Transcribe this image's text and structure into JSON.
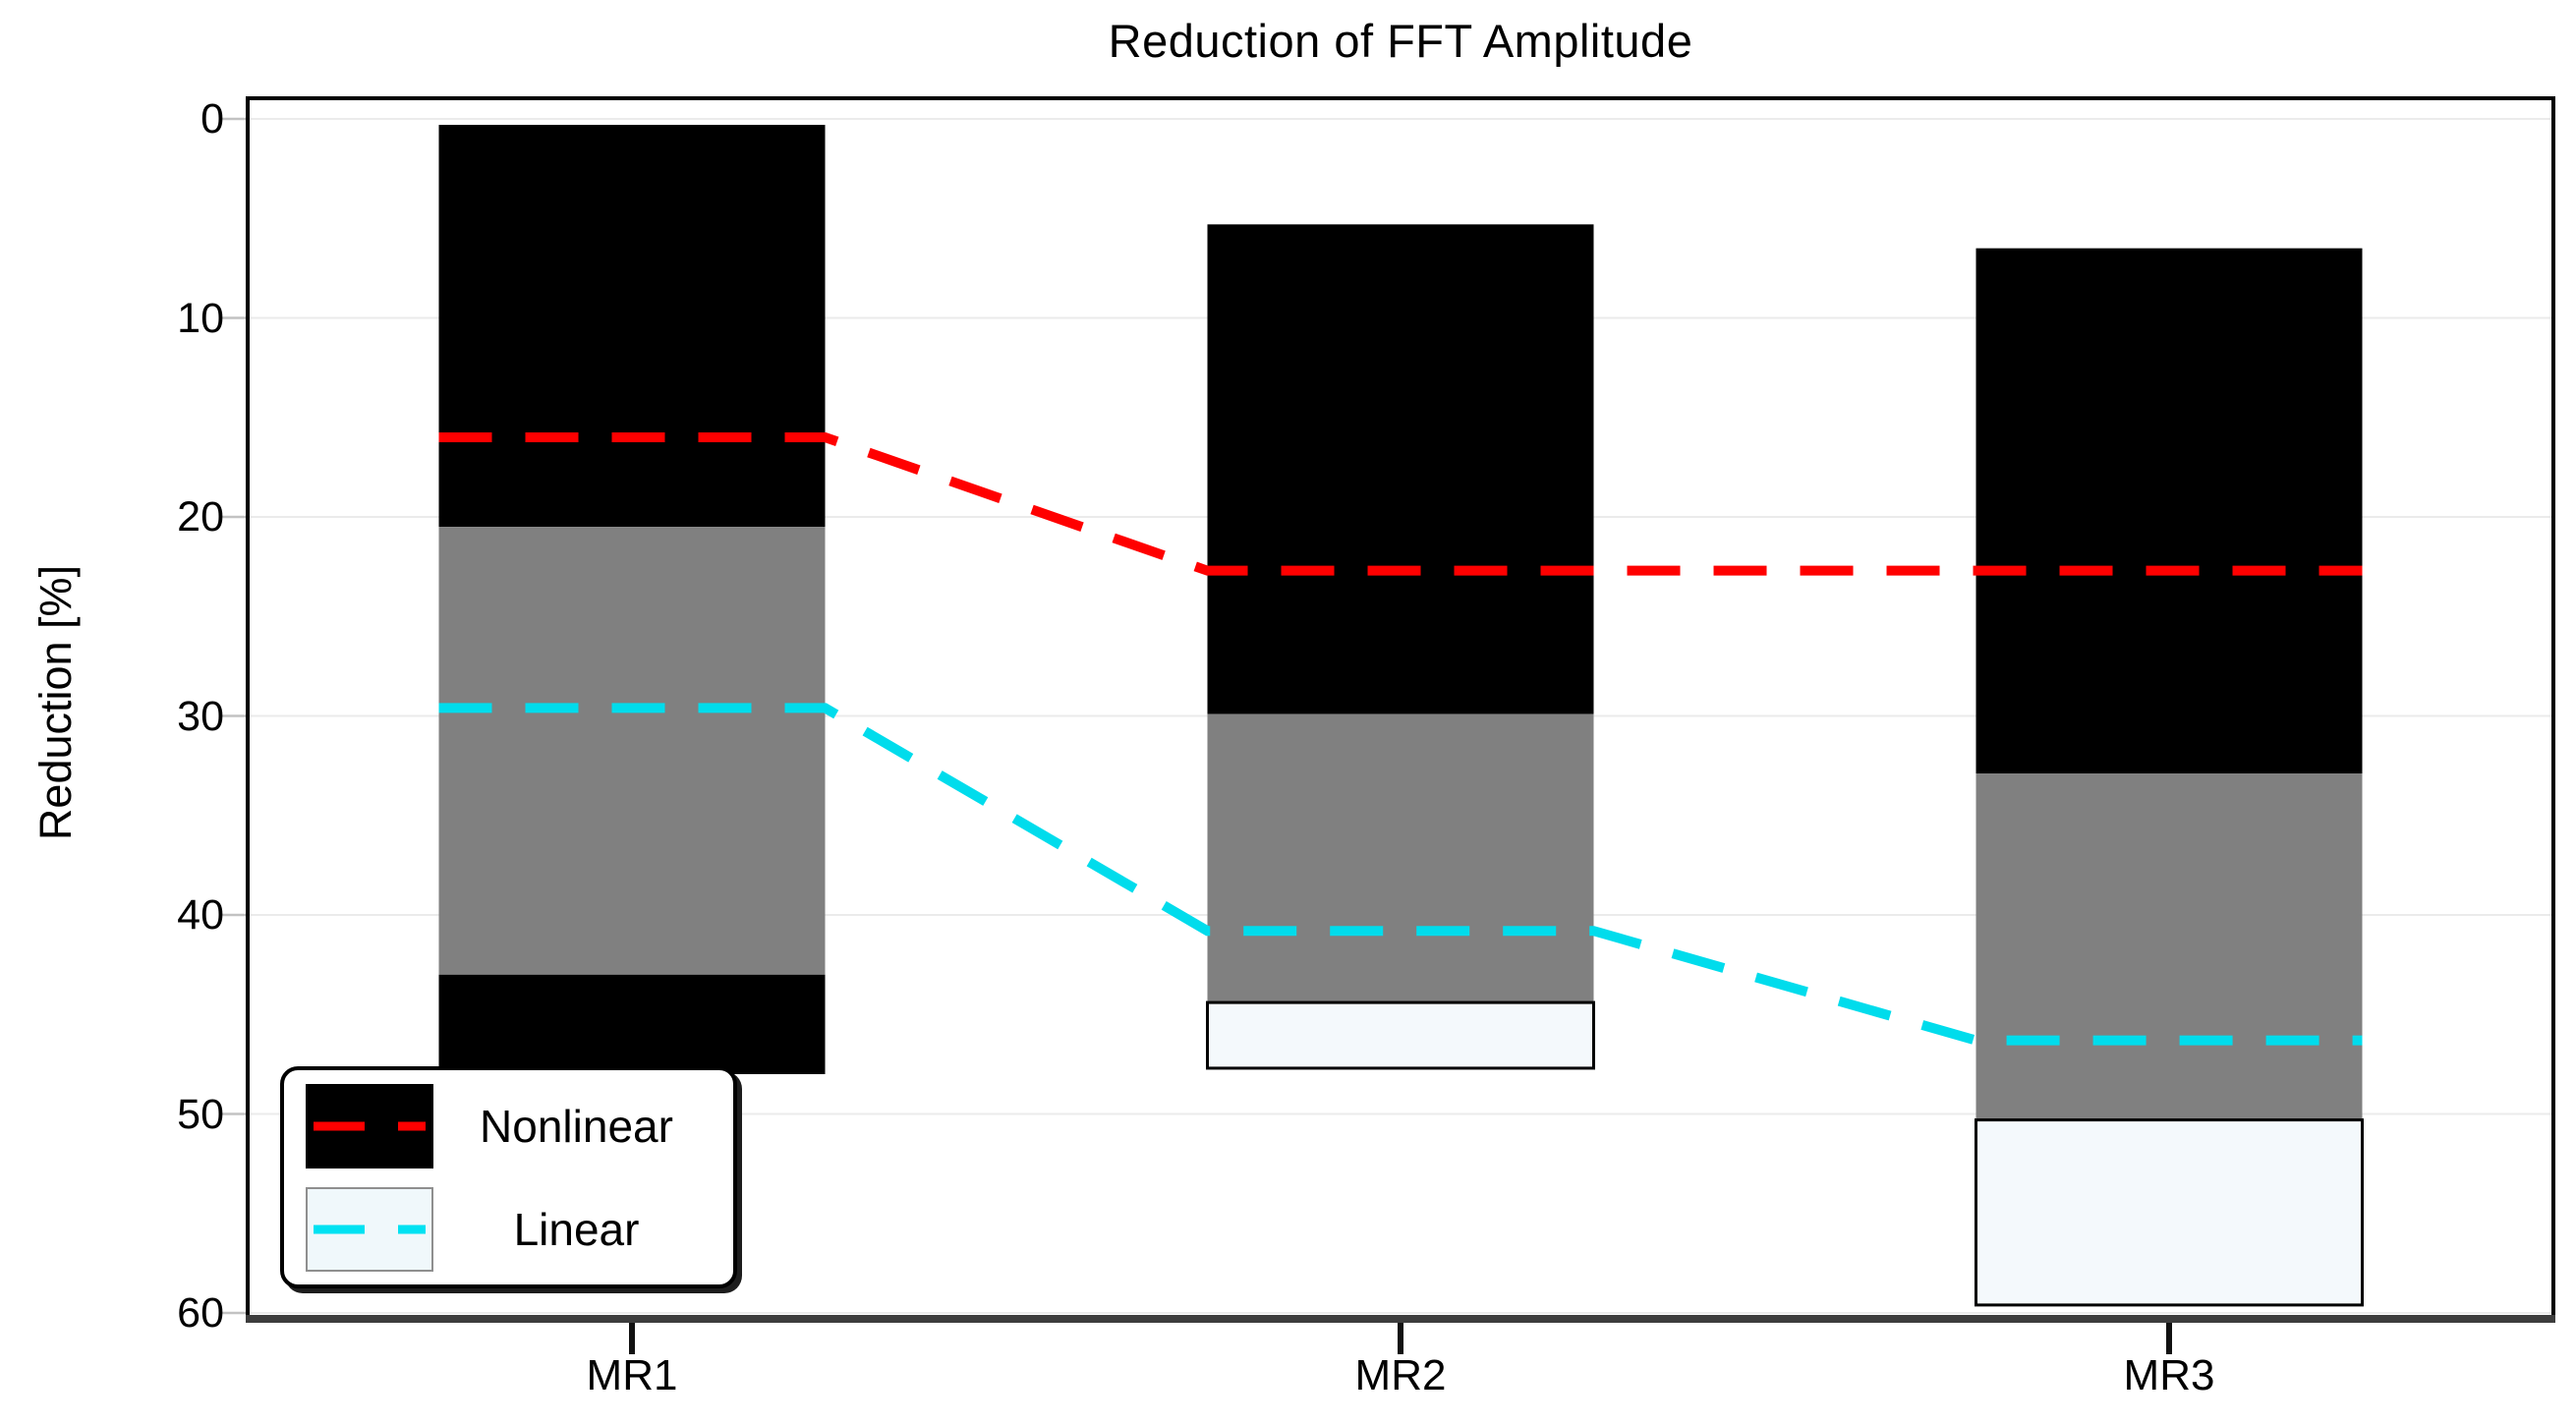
{
  "page": {
    "background": "#ffffff"
  },
  "chart_data": {
    "type": "bar",
    "subtype": "stacked-range-bars-with-dashed-lines",
    "title": "Reduction of FFT Amplitude",
    "xlabel": "",
    "ylabel": "Reduction [%]",
    "categories": [
      "MR1",
      "MR2",
      "MR3"
    ],
    "y_axis": {
      "ticks": [
        0,
        10,
        20,
        30,
        40,
        50,
        60
      ],
      "min": 0,
      "max": 60,
      "inverted": true,
      "grid": true,
      "grid_color": "#ebebeb"
    },
    "bar_segment_colors": {
      "black": "#000000",
      "gray": "#808080",
      "white": "#f4f9fc"
    },
    "bars": [
      {
        "category": "MR1",
        "range_percent": [
          0.3,
          48.0
        ],
        "segments": [
          {
            "color_key": "black",
            "from": 0.3,
            "to": 20.5
          },
          {
            "color_key": "gray",
            "from": 20.5,
            "to": 43.0
          },
          {
            "color_key": "black",
            "from": 43.0,
            "to": 48.0
          }
        ]
      },
      {
        "category": "MR2",
        "range_percent": [
          5.3,
          47.7
        ],
        "segments": [
          {
            "color_key": "black",
            "from": 5.3,
            "to": 29.9
          },
          {
            "color_key": "gray",
            "from": 29.9,
            "to": 44.4
          },
          {
            "color_key": "white",
            "from": 44.4,
            "to": 47.7
          }
        ]
      },
      {
        "category": "MR3",
        "range_percent": [
          6.5,
          59.6
        ],
        "segments": [
          {
            "color_key": "black",
            "from": 6.5,
            "to": 32.9
          },
          {
            "color_key": "gray",
            "from": 32.9,
            "to": 50.3
          },
          {
            "color_key": "white",
            "from": 50.3,
            "to": 59.6
          }
        ]
      }
    ],
    "lines": [
      {
        "name": "Nonlinear",
        "color": "#ff0000",
        "style": "dashed",
        "values_percent": [
          16.0,
          22.7,
          22.7
        ]
      },
      {
        "name": "Linear",
        "color": "#00dcec",
        "style": "dashed",
        "values_percent": [
          29.6,
          40.8,
          46.3
        ]
      }
    ],
    "legend": {
      "position": "bottom-left",
      "entries": [
        {
          "label": "Nonlinear",
          "swatch_fill": "#000000",
          "swatch_border": "#000000",
          "dash_color": "#ff0000"
        },
        {
          "label": "Linear",
          "swatch_fill": "#f0f8fb",
          "swatch_border": "#8f8f8f",
          "dash_color": "#00e2f2"
        }
      ]
    }
  }
}
